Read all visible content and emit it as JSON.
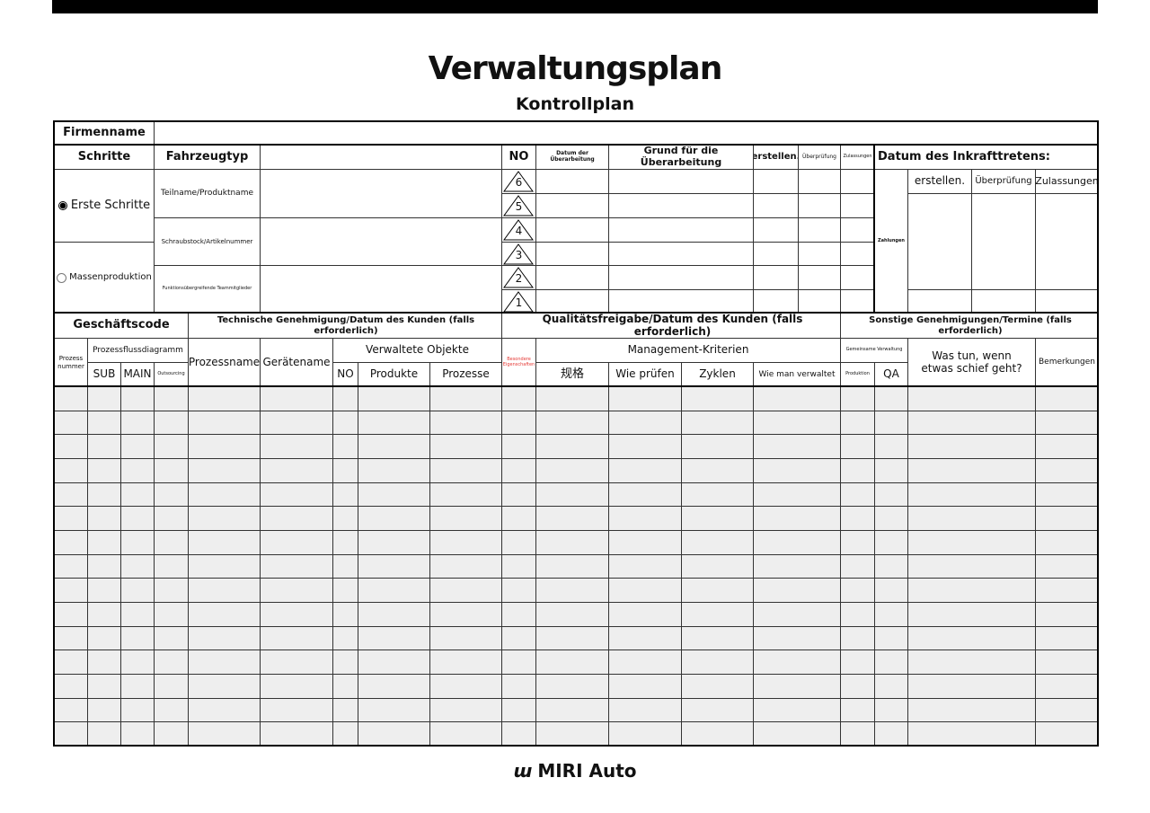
{
  "title": "Verwaltungsplan",
  "subtitle": "Kontrollplan",
  "top": {
    "firmenname": "Firmenname",
    "schritte": "Schritte",
    "fahrzeugtyp": "Fahrzeugtyp",
    "no": "NO",
    "datum_ueberarbeitung": "Datum der Überarbeitung",
    "grund": "Grund für die Überarbeitung",
    "erstellen": "erstellen.",
    "ueberpruefung": "Überprüfung",
    "zulassungen": "Zulassungen",
    "datum_inkraft": "Datum des Inkrafttretens:",
    "zahlungen": "Zahlungen",
    "erstellen2": "erstellen.",
    "ueberpruefung2": "Überprüfung",
    "zulassungen2": "Zulassungen",
    "erste_schritte": "Erste Schritte",
    "erste_schritte_selected": true,
    "massenproduktion": "Massenproduktion",
    "teilname": "Teilname/Produktname",
    "schraubstock": "Schraubstock/Artikelnummer",
    "funktion": "Funktionsübergreifende Teammitglieder",
    "revisions": [
      "6",
      "5",
      "4",
      "3",
      "2",
      "1"
    ]
  },
  "bottom": {
    "geschaeftscode": "Geschäftscode",
    "technische": "Technische Genehmigung/Datum des Kunden (falls erforderlich)",
    "qualitaet": "Qualitätsfreigabe/Datum des Kunden (falls erforderlich)",
    "sonstige": "Sonstige Genehmigungen/Termine (falls erforderlich)",
    "prozessnummer": "Prozess nummer",
    "prozessfluss": "Prozessflussdiagramm",
    "sub": "SUB",
    "main": "MAIN",
    "outsourcing": "Outsourcing",
    "prozessname": "Prozessname",
    "geraetename": "Gerätename",
    "verwaltete": "Verwaltete Objekte",
    "no": "NO",
    "produkte": "Produkte",
    "prozesse": "Prozesse",
    "besondere": "Besondere Eigenschaften",
    "management": "Management-Kriterien",
    "spec": "规格",
    "wie_pruefen": "Wie prüfen",
    "zyklen": "Zyklen",
    "wie_verwaltet": "Wie man verwaltet",
    "gemeinsame": "Gemeinsame Verwaltung",
    "produktion": "Produktion",
    "qa": "QA",
    "was_tun": "Was tun, wenn etwas schief geht?",
    "bemerkungen": "Bemerkungen",
    "data_rows": 15
  },
  "colors": {
    "besondere_text": "#e53935",
    "data_cell": "#eeeeee"
  },
  "footer": {
    "logo_mark": "ɯ",
    "brand": "MIRI Auto"
  }
}
